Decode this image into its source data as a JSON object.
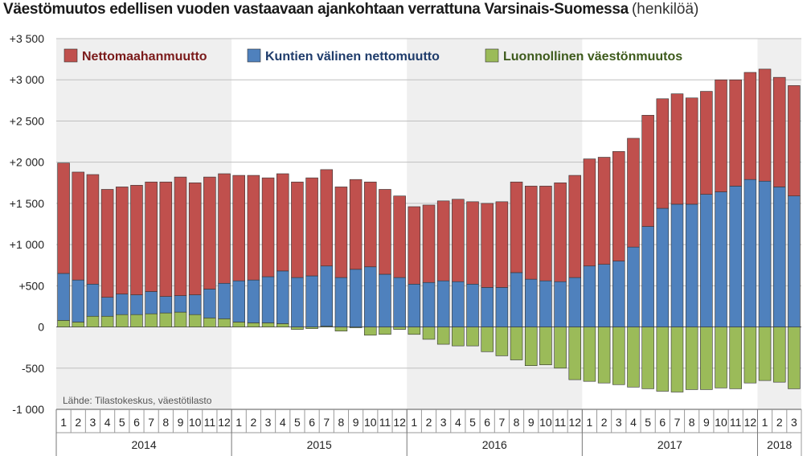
{
  "chart_data": {
    "type": "bar",
    "stacked": true,
    "title": "Väestömuutos edellisen vuoden vastaavaan ajankohtaan verrattuna Varsinais-Suomessa",
    "unit": "(henkilöä)",
    "source": "Lähde: Tilastokeskus, väestötilasto",
    "ylim": [
      -1000,
      3500
    ],
    "yticks": [
      -1000,
      -500,
      0,
      500,
      1000,
      1500,
      2000,
      2500,
      3000,
      3500
    ],
    "ytick_labels": [
      "-1 000",
      "-500",
      "0",
      "+500",
      "+1 000",
      "+1 500",
      "+2 000",
      "+2 500",
      "+3 000",
      "+3 500"
    ],
    "grid": true,
    "legend_position": "top-left",
    "years": [
      {
        "label": "2014",
        "months": 12
      },
      {
        "label": "2015",
        "months": 12
      },
      {
        "label": "2016",
        "months": 12
      },
      {
        "label": "2017",
        "months": 12
      },
      {
        "label": "2018",
        "months": 3
      }
    ],
    "months": [
      "1",
      "2",
      "3",
      "4",
      "5",
      "6",
      "7",
      "8",
      "9",
      "10",
      "11",
      "12",
      "1",
      "2",
      "3",
      "4",
      "5",
      "6",
      "7",
      "8",
      "9",
      "10",
      "11",
      "12",
      "1",
      "2",
      "3",
      "4",
      "5",
      "6",
      "7",
      "8",
      "9",
      "10",
      "11",
      "12",
      "1",
      "2",
      "3",
      "4",
      "5",
      "6",
      "7",
      "8",
      "9",
      "10",
      "11",
      "12",
      "1",
      "2",
      "3"
    ],
    "series": [
      {
        "name": "Luonnollinen väestönmuutos",
        "color": "#9bbb59",
        "values": [
          80,
          60,
          130,
          130,
          150,
          150,
          160,
          170,
          180,
          150,
          110,
          100,
          60,
          50,
          50,
          40,
          -30,
          -20,
          10,
          -50,
          -10,
          -100,
          -90,
          -30,
          -90,
          -150,
          -210,
          -230,
          -230,
          -300,
          -350,
          -400,
          -470,
          -460,
          -500,
          -640,
          -660,
          -680,
          -700,
          -730,
          -750,
          -780,
          -790,
          -760,
          -760,
          -740,
          -750,
          -680,
          -650,
          -670,
          -750
        ]
      },
      {
        "name": "Kuntien välinen nettomuutto",
        "color": "#4f81bd",
        "values": [
          570,
          510,
          390,
          230,
          250,
          240,
          270,
          200,
          200,
          240,
          350,
          430,
          500,
          520,
          560,
          640,
          600,
          620,
          730,
          600,
          700,
          730,
          640,
          600,
          520,
          540,
          560,
          550,
          520,
          480,
          480,
          660,
          580,
          560,
          550,
          600,
          740,
          760,
          800,
          970,
          1220,
          1440,
          1490,
          1490,
          1610,
          1640,
          1710,
          1790,
          1770,
          1700,
          1590
        ]
      },
      {
        "name": "Nettomaahanmuutto",
        "color": "#c0504d",
        "values": [
          1340,
          1310,
          1330,
          1310,
          1300,
          1330,
          1330,
          1390,
          1440,
          1360,
          1360,
          1330,
          1280,
          1270,
          1200,
          1180,
          1160,
          1190,
          1170,
          1100,
          1090,
          1030,
          1030,
          990,
          940,
          940,
          970,
          1000,
          1000,
          1020,
          1040,
          1100,
          1130,
          1150,
          1200,
          1240,
          1300,
          1300,
          1330,
          1320,
          1350,
          1330,
          1340,
          1290,
          1250,
          1360,
          1290,
          1300,
          1360,
          1330,
          1340
        ]
      }
    ]
  }
}
